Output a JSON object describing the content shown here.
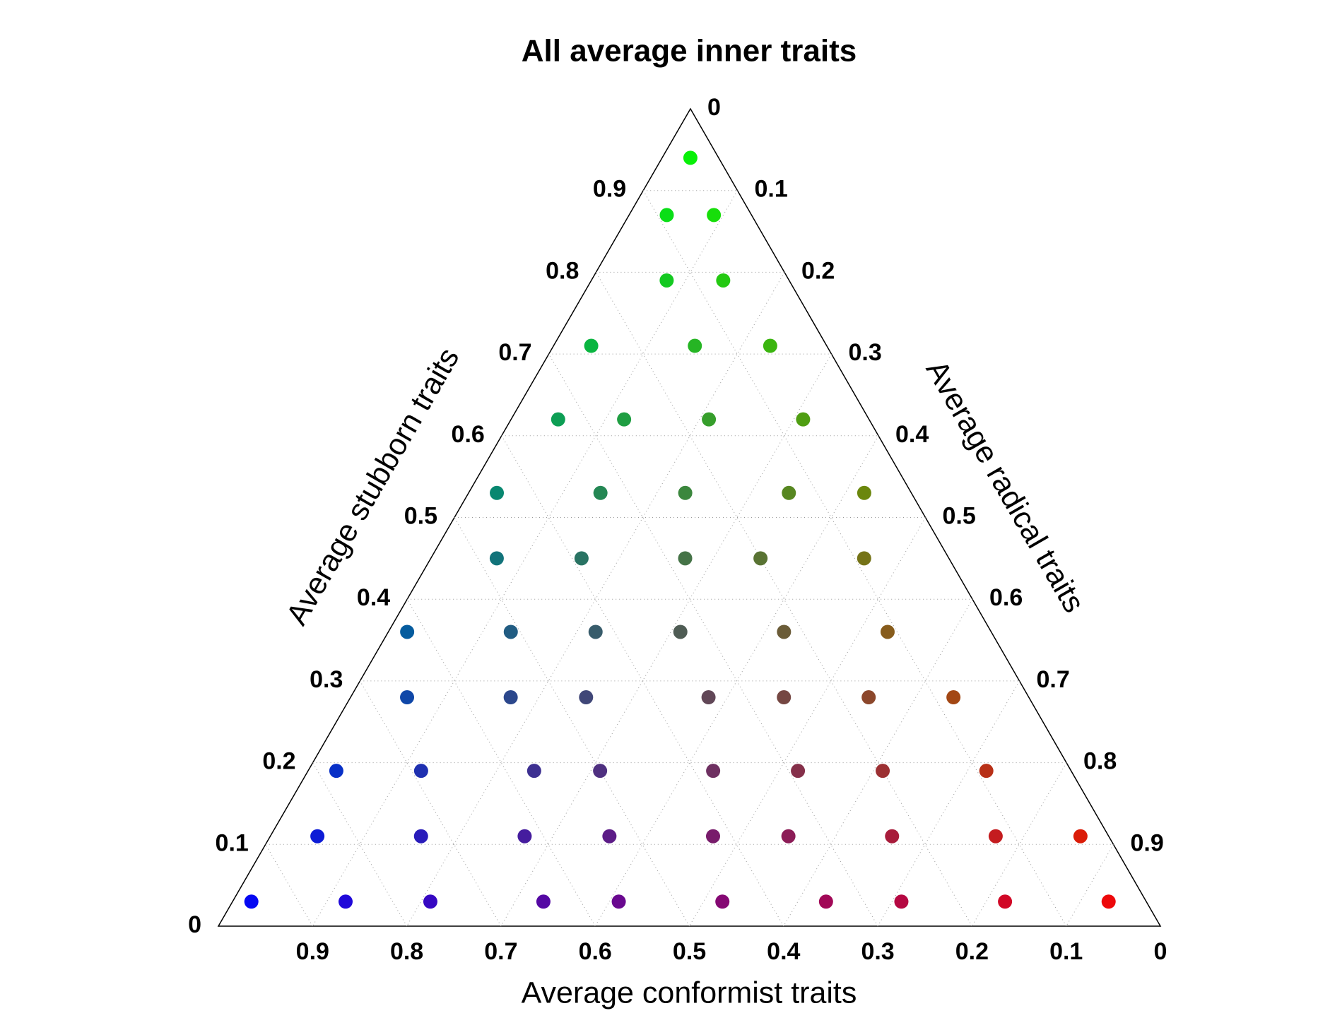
{
  "chart_data": {
    "type": "ternary",
    "title": "All average inner traits",
    "bottom_axis_label": "Average conformist traits",
    "left_axis_label": "Average stubborn traits",
    "right_axis_label": "Average radical traits",
    "bottom_ticks": [
      0.9,
      0.8,
      0.7,
      0.6,
      0.5,
      0.4,
      0.3,
      0.2,
      0.1,
      0
    ],
    "left_ticks": [
      0,
      0.1,
      0.2,
      0.3,
      0.4,
      0.5,
      0.6,
      0.7,
      0.8,
      0.9
    ],
    "right_ticks": [
      0,
      0.1,
      0.2,
      0.3,
      0.4,
      0.5,
      0.6,
      0.7,
      0.8,
      0.9
    ],
    "grid": true,
    "point_order": [
      "conformist",
      "stubborn",
      "radical"
    ],
    "points": [
      [
        0.95,
        0.03,
        0.02
      ],
      [
        0.85,
        0.03,
        0.12
      ],
      [
        0.76,
        0.03,
        0.21
      ],
      [
        0.64,
        0.03,
        0.33
      ],
      [
        0.56,
        0.03,
        0.41
      ],
      [
        0.45,
        0.03,
        0.52
      ],
      [
        0.34,
        0.03,
        0.63
      ],
      [
        0.26,
        0.03,
        0.71
      ],
      [
        0.15,
        0.03,
        0.82
      ],
      [
        0.04,
        0.03,
        0.93
      ],
      [
        0.84,
        0.11,
        0.05
      ],
      [
        0.73,
        0.11,
        0.16
      ],
      [
        0.62,
        0.11,
        0.27
      ],
      [
        0.53,
        0.11,
        0.36
      ],
      [
        0.42,
        0.11,
        0.47
      ],
      [
        0.34,
        0.11,
        0.55
      ],
      [
        0.23,
        0.11,
        0.66
      ],
      [
        0.12,
        0.11,
        0.77
      ],
      [
        0.03,
        0.11,
        0.86
      ],
      [
        0.78,
        0.19,
        0.03
      ],
      [
        0.69,
        0.19,
        0.12
      ],
      [
        0.57,
        0.19,
        0.24
      ],
      [
        0.5,
        0.19,
        0.31
      ],
      [
        0.38,
        0.19,
        0.43
      ],
      [
        0.29,
        0.19,
        0.52
      ],
      [
        0.2,
        0.19,
        0.61
      ],
      [
        0.09,
        0.19,
        0.72
      ],
      [
        0.66,
        0.28,
        0.06
      ],
      [
        0.55,
        0.28,
        0.17
      ],
      [
        0.47,
        0.28,
        0.25
      ],
      [
        0.34,
        0.28,
        0.38
      ],
      [
        0.26,
        0.28,
        0.46
      ],
      [
        0.17,
        0.28,
        0.55
      ],
      [
        0.08,
        0.28,
        0.64
      ],
      [
        0.62,
        0.36,
        0.02
      ],
      [
        0.51,
        0.36,
        0.13
      ],
      [
        0.42,
        0.36,
        0.22
      ],
      [
        0.33,
        0.36,
        0.31
      ],
      [
        0.22,
        0.36,
        0.42
      ],
      [
        0.11,
        0.36,
        0.53
      ],
      [
        0.48,
        0.45,
        0.07
      ],
      [
        0.39,
        0.45,
        0.16
      ],
      [
        0.28,
        0.45,
        0.27
      ],
      [
        0.2,
        0.45,
        0.35
      ],
      [
        0.09,
        0.45,
        0.46
      ],
      [
        0.44,
        0.53,
        0.03
      ],
      [
        0.33,
        0.53,
        0.14
      ],
      [
        0.24,
        0.53,
        0.23
      ],
      [
        0.13,
        0.53,
        0.34
      ],
      [
        0.05,
        0.53,
        0.42
      ],
      [
        0.33,
        0.62,
        0.05
      ],
      [
        0.26,
        0.62,
        0.12
      ],
      [
        0.17,
        0.62,
        0.21
      ],
      [
        0.07,
        0.62,
        0.31
      ],
      [
        0.25,
        0.71,
        0.04
      ],
      [
        0.14,
        0.71,
        0.15
      ],
      [
        0.06,
        0.71,
        0.23
      ],
      [
        0.13,
        0.79,
        0.08
      ],
      [
        0.07,
        0.79,
        0.14
      ],
      [
        0.09,
        0.87,
        0.04
      ],
      [
        0.04,
        0.87,
        0.09
      ],
      [
        0.03,
        0.94,
        0.03
      ]
    ]
  }
}
